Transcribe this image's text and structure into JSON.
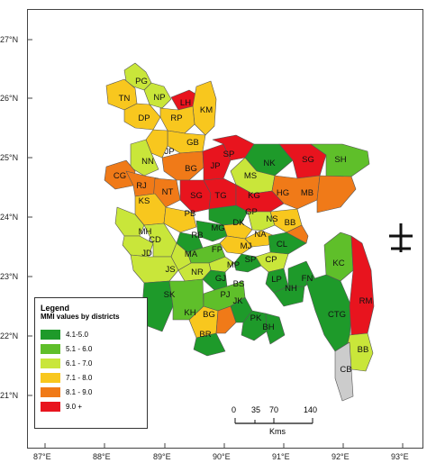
{
  "map": {
    "lat_labels": [
      "27°N",
      "26°N",
      "25°N",
      "24°N",
      "23°N",
      "22°N",
      "21°N"
    ],
    "lon_labels": [
      "87°E",
      "88°E",
      "89°E",
      "90°E",
      "91°E",
      "92°E",
      "93°E"
    ]
  },
  "legend": {
    "title": "Legend",
    "subtitle": "MMI values by districts",
    "items": [
      {
        "label": "4.1-5.0",
        "color": "#1e9a2a"
      },
      {
        "label": "5.1 - 6.0",
        "color": "#5fbf2a"
      },
      {
        "label": "6.1 - 7.0",
        "color": "#c9e63a"
      },
      {
        "label": "7.1 - 8.0",
        "color": "#f8c71e"
      },
      {
        "label": "8.1 - 9.0",
        "color": "#f07a18"
      },
      {
        "label": "9.0 +",
        "color": "#e8141e"
      }
    ]
  },
  "scale": {
    "ticks": [
      "0",
      "35",
      "70",
      "140"
    ],
    "unit": "Kms"
  },
  "districts": [
    {
      "code": "PG",
      "color": "#c9e63a"
    },
    {
      "code": "NP",
      "color": "#c9e63a"
    },
    {
      "code": "TN",
      "color": "#f8c71e"
    },
    {
      "code": "LH",
      "color": "#f8c71e"
    },
    {
      "code": "KM",
      "color": "#e8141e"
    },
    {
      "code": "DP",
      "color": "#f8c71e"
    },
    {
      "code": "RP",
      "color": "#f8c71e"
    },
    {
      "code": "GB",
      "color": "#f8c71e"
    },
    {
      "code": "JP",
      "color": "#f8c71e"
    },
    {
      "code": "NN",
      "color": "#c9e63a"
    },
    {
      "code": "SP",
      "color": "#f07a18"
    },
    {
      "code": "BG",
      "color": "#f07a18"
    },
    {
      "code": "JP",
      "color": "#f07a18"
    },
    {
      "code": "NK",
      "color": "#f07a18"
    },
    {
      "code": "SG",
      "color": "#e8141e"
    },
    {
      "code": "SH",
      "color": "#e8141e"
    },
    {
      "code": "CG",
      "color": "#1e9a2a"
    },
    {
      "code": "MS",
      "color": "#e8141e"
    },
    {
      "code": "RJ",
      "color": "#5fbf2a"
    },
    {
      "code": "NT",
      "color": "#c9e63a"
    },
    {
      "code": "SG",
      "color": "#e8141e"
    },
    {
      "code": "TG",
      "color": "#e8141e"
    },
    {
      "code": "KG",
      "color": "#e8141e"
    },
    {
      "code": "HG",
      "color": "#f07a18"
    },
    {
      "code": "MB",
      "color": "#f07a18"
    },
    {
      "code": "GP",
      "color": "#f8c71e"
    },
    {
      "code": "PB",
      "color": "#f8c71e"
    },
    {
      "code": "KS",
      "color": "#1e9a2a"
    },
    {
      "code": "DK",
      "color": "#f8c71e"
    },
    {
      "code": "NS",
      "color": "#c9e63a"
    },
    {
      "code": "BB",
      "color": "#f8c71e"
    },
    {
      "code": "MH",
      "color": "#1e9a2a"
    },
    {
      "code": "MG",
      "color": "#f8c71e"
    },
    {
      "code": "CD",
      "color": "#1e9a2a"
    },
    {
      "code": "RB",
      "color": "#c9e63a"
    },
    {
      "code": "NA",
      "color": "#c9e63a"
    },
    {
      "code": "JD",
      "color": "#1e9a2a"
    },
    {
      "code": "MJ",
      "color": "#f8c71e"
    },
    {
      "code": "MA",
      "color": "#5fbf2a"
    },
    {
      "code": "FP",
      "color": "#c9e63a"
    },
    {
      "code": "CL",
      "color": "#c9e63a"
    },
    {
      "code": "KC",
      "color": "#c9e63a"
    },
    {
      "code": "JS",
      "color": "#1e9a2a"
    },
    {
      "code": "MP",
      "color": "#c9e63a"
    },
    {
      "code": "SP",
      "color": "#c9e63a"
    },
    {
      "code": "CP",
      "color": "#c9e63a"
    },
    {
      "code": "NR",
      "color": "#1e9a2a"
    },
    {
      "code": "GJ",
      "color": "#1e9a2a"
    },
    {
      "code": "FN",
      "color": "#5fbf2a"
    },
    {
      "code": "LP",
      "color": "#f8c71e"
    },
    {
      "code": "BS",
      "color": "#1e9a2a"
    },
    {
      "code": "NH",
      "color": "#5fbf2a"
    },
    {
      "code": "RM",
      "color": "#f07a18"
    },
    {
      "code": "SK",
      "color": "#1e9a2a"
    },
    {
      "code": "PJ",
      "color": "#1e9a2a"
    },
    {
      "code": "JK",
      "color": "#1e9a2a"
    },
    {
      "code": "KH",
      "color": "#1e9a2a"
    },
    {
      "code": "BG",
      "color": "#1e9a2a"
    },
    {
      "code": "PK",
      "color": "#1e9a2a"
    },
    {
      "code": "CTG",
      "color": "#f07a18"
    },
    {
      "code": "BH",
      "color": "#5fbf2a"
    },
    {
      "code": "BR",
      "color": "#1e9a2a"
    },
    {
      "code": "BB",
      "color": "#e8141e"
    },
    {
      "code": "CB",
      "color": "#c9e63a"
    }
  ]
}
